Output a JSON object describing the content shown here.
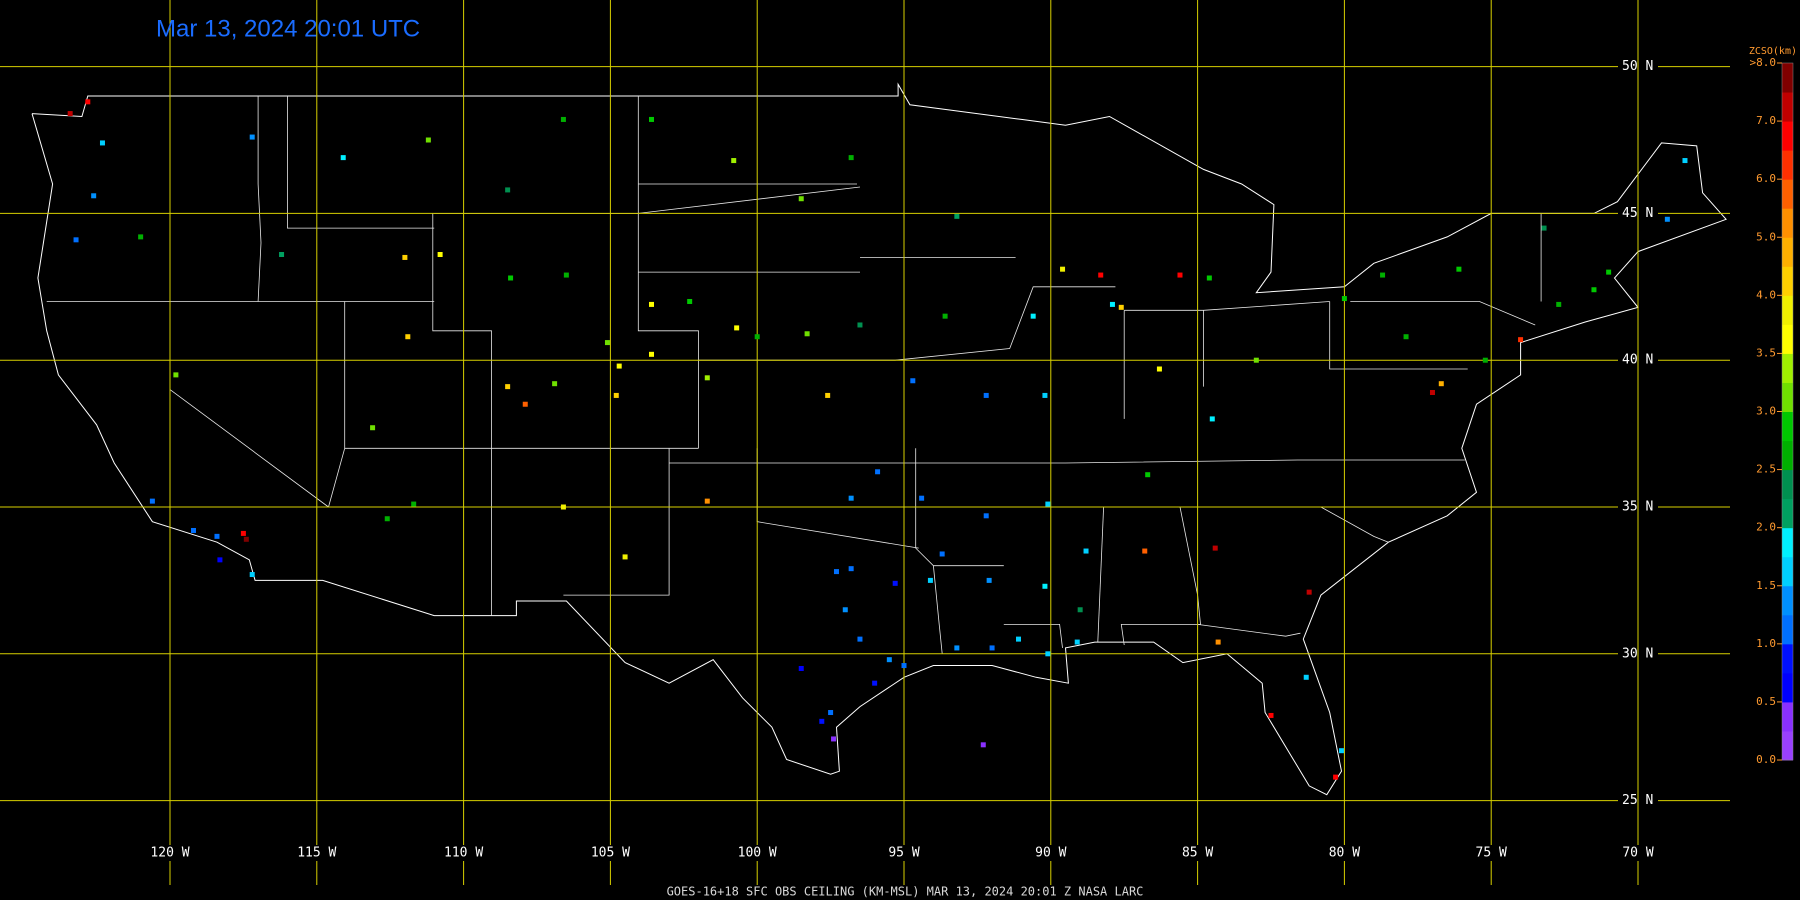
{
  "title": "Mar 13, 2024 20:01 UTC",
  "footer": "GOES-16+18  SFC OBS CEILING (KM-MSL)  MAR 13, 2024 20:01 Z  NASA LARC",
  "latitudes": [
    {
      "value": 50,
      "label": "50 N"
    },
    {
      "value": 45,
      "label": "45 N"
    },
    {
      "value": 40,
      "label": "40 N"
    },
    {
      "value": 35,
      "label": "35 N"
    },
    {
      "value": 30,
      "label": "30 N"
    },
    {
      "value": 25,
      "label": "25 N"
    }
  ],
  "longitudes": [
    {
      "value": -120,
      "label": "120 W"
    },
    {
      "value": -115,
      "label": "115 W"
    },
    {
      "value": -110,
      "label": "110 W"
    },
    {
      "value": -105,
      "label": "105 W"
    },
    {
      "value": -100,
      "label": "100 W"
    },
    {
      "value": -95,
      "label": "95 W"
    },
    {
      "value": -90,
      "label": "90 W"
    },
    {
      "value": -85,
      "label": "85 W"
    },
    {
      "value": -80,
      "label": "80 W"
    },
    {
      "value": -75,
      "label": "75 W"
    },
    {
      "value": -70,
      "label": "70 W"
    }
  ],
  "colorbar": {
    "title": "ZCSO(km)",
    "labels": [
      {
        "value": 0,
        "label": "0.0"
      },
      {
        "value": 0.5,
        "label": "0.5"
      },
      {
        "value": 1,
        "label": "1.0"
      },
      {
        "value": 1.5,
        "label": "1.5"
      },
      {
        "value": 2,
        "label": "2.0"
      },
      {
        "value": 2.5,
        "label": "2.5"
      },
      {
        "value": 3,
        "label": "3.0"
      },
      {
        "value": 3.5,
        "label": "3.5"
      },
      {
        "value": 4,
        "label": "4.0"
      },
      {
        "value": 5,
        "label": "5.0"
      },
      {
        "value": 6,
        "label": "6.0"
      },
      {
        "value": 7,
        "label": "7.0"
      },
      {
        "value": 8,
        "label": ">8.0"
      }
    ],
    "colors": [
      "#9a40ff",
      "#8a30ff",
      "#0000ff",
      "#0010ff",
      "#0070ff",
      "#0090ff",
      "#00d0ff",
      "#00f0ff",
      "#00a060",
      "#009050",
      "#00b000",
      "#00c800",
      "#70e000",
      "#a0f000",
      "#ffff00",
      "#f0f000",
      "#ffd000",
      "#ffb000",
      "#ff9000",
      "#ff6000",
      "#ff3000",
      "#ff0000",
      "#c00000",
      "#800000"
    ]
  },
  "stations": [
    [
      -96.5,
      30.5,
      1.2
    ],
    [
      -97,
      31.5,
      1.3
    ],
    [
      -95.5,
      29.8,
      1.4
    ],
    [
      -95,
      29.6,
      1.1
    ],
    [
      -96,
      29,
      0.8
    ],
    [
      -97.5,
      28,
      1.0
    ],
    [
      -97.8,
      27.7,
      0.9
    ],
    [
      -98.5,
      29.5,
      0.7
    ],
    [
      -97.3,
      32.8,
      1.2
    ],
    [
      -96.8,
      32.9,
      1.1
    ],
    [
      -95.3,
      32.4,
      0.8
    ],
    [
      -94.1,
      32.5,
      1.6
    ],
    [
      -93.2,
      30.2,
      1.3
    ],
    [
      -92,
      30.2,
      1.2
    ],
    [
      -91.1,
      30.5,
      1.7
    ],
    [
      -90.1,
      30,
      1.7
    ],
    [
      -89.1,
      30.4,
      1.6
    ],
    [
      -90.2,
      32.3,
      1.8
    ],
    [
      -92.1,
      32.5,
      1.3
    ],
    [
      -93.7,
      33.4,
      1.2
    ],
    [
      -94.4,
      35.3,
      1.2
    ],
    [
      -92.2,
      34.7,
      1.1
    ],
    [
      -90.1,
      35.1,
      1.7
    ],
    [
      -88.8,
      33.5,
      1.6
    ],
    [
      -86.8,
      33.5,
      5.8
    ],
    [
      -84.4,
      33.6,
      7.2
    ],
    [
      -81.2,
      32.1,
      7.0
    ],
    [
      -81.3,
      29.2,
      1.7
    ],
    [
      -82.5,
      27.9,
      6.5
    ],
    [
      -80.1,
      26.7,
      1.7
    ],
    [
      -80.3,
      25.8,
      6.8
    ],
    [
      -84.3,
      30.4,
      5.0
    ],
    [
      -104.7,
      39.8,
      3.6
    ],
    [
      -104.8,
      38.8,
      4.2
    ],
    [
      -105.1,
      40.6,
      3.2
    ],
    [
      -106.9,
      39.2,
      3.0
    ],
    [
      -107.9,
      38.5,
      5.5
    ],
    [
      -108.5,
      39.1,
      4.0
    ],
    [
      -103.6,
      40.2,
      3.5
    ],
    [
      -101.7,
      39.4,
      3.4
    ],
    [
      -100,
      40.8,
      2.7
    ],
    [
      -97.6,
      38.8,
      4.3
    ],
    [
      -96.5,
      41.2,
      2.4
    ],
    [
      -98.3,
      40.9,
      3.2
    ],
    [
      -100.7,
      41.1,
      3.5
    ],
    [
      -103.6,
      41.9,
      3.6
    ],
    [
      -106.5,
      42.9,
      2.6
    ],
    [
      -108.4,
      42.8,
      2.8
    ],
    [
      -110.8,
      43.6,
      3.5
    ],
    [
      -112,
      43.5,
      4.2
    ],
    [
      -111.9,
      40.8,
      4.0
    ],
    [
      -113.1,
      37.7,
      3.0
    ],
    [
      -112.6,
      34.6,
      2.5
    ],
    [
      -111.7,
      35.1,
      2.7
    ],
    [
      -106.6,
      35,
      3.8
    ],
    [
      -104.5,
      33.3,
      3.9
    ],
    [
      -101.7,
      35.2,
      5.1
    ],
    [
      -102.3,
      42.0,
      2.8
    ],
    [
      -98.5,
      45.5,
      3.1
    ],
    [
      -96.8,
      46.9,
      2.5
    ],
    [
      -100.8,
      46.8,
      3.3
    ],
    [
      -103.6,
      48.2,
      2.9
    ],
    [
      -106.6,
      48.2,
      2.6
    ],
    [
      -108.5,
      45.8,
      2.3
    ],
    [
      -111.2,
      47.5,
      3.2
    ],
    [
      -114.1,
      46.9,
      1.9
    ],
    [
      -116.2,
      43.6,
      2.0
    ],
    [
      -117.2,
      47.6,
      1.3
    ],
    [
      -122.3,
      47.4,
      1.6
    ],
    [
      -122.6,
      45.6,
      1.3
    ],
    [
      -123.2,
      44.1,
      1.0
    ],
    [
      -122.8,
      48.8,
      6.8
    ],
    [
      -123.4,
      48.4,
      7.2
    ],
    [
      -121,
      44.2,
      2.6
    ],
    [
      -119.8,
      39.5,
      3.1
    ],
    [
      -118.4,
      34,
      1.1
    ],
    [
      -117.2,
      32.7,
      1.5
    ],
    [
      -117.4,
      33.9,
      7.5
    ],
    [
      -119.2,
      34.2,
      1.0
    ],
    [
      -120.6,
      35.2,
      1.0
    ],
    [
      -117.5,
      34.1,
      6.8
    ],
    [
      -87.9,
      41.9,
      1.8
    ],
    [
      -87.6,
      41.8,
      4.1
    ],
    [
      -88.3,
      42.9,
      6.5
    ],
    [
      -89.6,
      43.1,
      3.8
    ],
    [
      -90.6,
      41.5,
      1.8
    ],
    [
      -93.6,
      41.5,
      2.5
    ],
    [
      -93.2,
      44.9,
      2.2
    ],
    [
      -90.2,
      38.8,
      1.6
    ],
    [
      -94.7,
      39.3,
      1.2
    ],
    [
      -92.2,
      38.8,
      1.1
    ],
    [
      -95.9,
      36.2,
      1.2
    ],
    [
      -96.8,
      35.3,
      1.3
    ],
    [
      -86.3,
      39.7,
      3.6
    ],
    [
      -85.6,
      42.9,
      6.9
    ],
    [
      -84.6,
      42.8,
      2.8
    ],
    [
      -83,
      40,
      3.0
    ],
    [
      -84.5,
      38,
      1.9
    ],
    [
      -86.7,
      36.1,
      2.8
    ],
    [
      -77,
      38.9,
      7.0
    ],
    [
      -76.7,
      39.2,
      4.5
    ],
    [
      -75.2,
      40,
      2.6
    ],
    [
      -77.9,
      40.8,
      2.6
    ],
    [
      -74,
      40.7,
      6.2
    ],
    [
      -71.5,
      42.4,
      2.8
    ],
    [
      -72.7,
      41.9,
      2.6
    ],
    [
      -71,
      43,
      2.9
    ],
    [
      -69,
      44.8,
      1.4
    ],
    [
      -68.4,
      46.8,
      1.7
    ],
    [
      -73.2,
      44.5,
      2.4
    ],
    [
      -80,
      42.1,
      2.8
    ],
    [
      -78.7,
      42.9,
      2.7
    ],
    [
      -76.1,
      43.1,
      2.9
    ],
    [
      -89,
      31.5,
      2.3
    ],
    [
      -92.3,
      26.9,
      0.3
    ],
    [
      -97.4,
      27.1,
      0.4
    ],
    [
      -118.3,
      33.2,
      0.5
    ]
  ]
}
